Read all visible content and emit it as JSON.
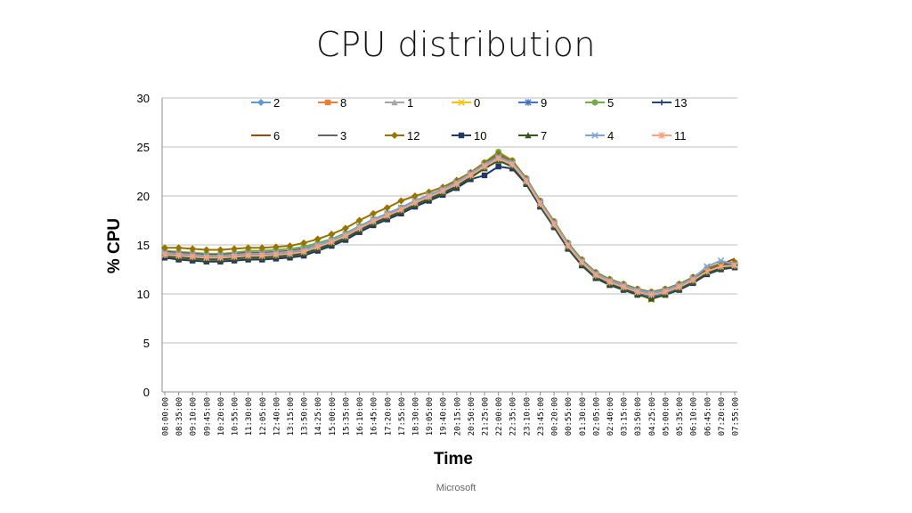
{
  "title": "CPU distribution",
  "footer": "Microsoft",
  "chart_data": {
    "type": "line",
    "xlabel": "Time",
    "ylabel": "% CPU",
    "ylim": [
      0,
      30
    ],
    "yticks": [
      0,
      5,
      10,
      15,
      20,
      25,
      30
    ],
    "grid": true,
    "legend": "top",
    "categories": [
      "08:00:00",
      "08:35:00",
      "09:10:00",
      "09:45:00",
      "10:20:00",
      "10:55:00",
      "11:30:00",
      "12:05:00",
      "12:40:00",
      "13:15:00",
      "13:50:00",
      "14:25:00",
      "15:00:00",
      "15:35:00",
      "16:10:00",
      "16:45:00",
      "17:20:00",
      "17:55:00",
      "18:30:00",
      "19:05:00",
      "19:40:00",
      "20:15:00",
      "20:50:00",
      "21:25:00",
      "22:00:00",
      "22:35:00",
      "23:10:00",
      "23:45:00",
      "00:20:00",
      "00:55:00",
      "01:30:00",
      "02:05:00",
      "02:40:00",
      "03:15:00",
      "03:50:00",
      "04:25:00",
      "05:00:00",
      "05:35:00",
      "06:10:00",
      "06:45:00",
      "07:20:00",
      "07:55:00"
    ],
    "series": [
      {
        "name": "2",
        "color": "#5b9bd5",
        "marker": "diamond",
        "values": [
          14.2,
          14.0,
          13.9,
          13.8,
          13.8,
          13.9,
          14.0,
          13.9,
          14.0,
          14.1,
          14.3,
          14.8,
          15.3,
          15.9,
          16.7,
          17.4,
          18.0,
          18.6,
          19.3,
          19.9,
          20.5,
          21.2,
          22.1,
          23.2,
          24.0,
          23.4,
          21.6,
          19.3,
          17.2,
          15.0,
          13.3,
          12.0,
          11.3,
          10.8,
          10.3,
          10.0,
          10.3,
          10.8,
          11.5,
          12.4,
          12.9,
          13.0
        ]
      },
      {
        "name": "8",
        "color": "#ed7d31",
        "marker": "square",
        "values": [
          14.0,
          13.8,
          13.7,
          13.6,
          13.6,
          13.7,
          13.8,
          13.8,
          13.9,
          14.0,
          14.2,
          14.7,
          15.2,
          15.8,
          16.6,
          17.3,
          17.9,
          18.5,
          19.2,
          19.8,
          20.4,
          21.1,
          22.0,
          23.3,
          23.8,
          23.2,
          21.5,
          19.2,
          17.1,
          14.9,
          13.2,
          11.9,
          11.2,
          10.7,
          10.2,
          9.9,
          10.2,
          10.7,
          11.4,
          12.3,
          12.8,
          13.1
        ]
      },
      {
        "name": "1",
        "color": "#a5a5a5",
        "marker": "triangle",
        "values": [
          14.1,
          13.9,
          13.8,
          13.7,
          13.7,
          13.8,
          13.9,
          13.9,
          14.0,
          14.1,
          14.3,
          14.8,
          15.3,
          15.9,
          16.7,
          17.4,
          18.0,
          18.6,
          19.3,
          19.9,
          20.5,
          21.2,
          22.1,
          23.0,
          23.9,
          23.3,
          21.6,
          19.3,
          17.2,
          15.0,
          13.3,
          12.0,
          11.3,
          10.8,
          10.3,
          10.0,
          10.3,
          10.8,
          11.5,
          12.4,
          12.9,
          13.0
        ]
      },
      {
        "name": "0",
        "color": "#ffc000",
        "marker": "x",
        "values": [
          13.8,
          13.6,
          13.5,
          13.4,
          13.4,
          13.5,
          13.6,
          13.6,
          13.7,
          13.8,
          14.0,
          14.5,
          15.0,
          15.6,
          16.4,
          17.1,
          17.7,
          18.3,
          19.0,
          19.6,
          20.2,
          20.9,
          21.8,
          22.8,
          23.6,
          23.0,
          21.3,
          19.0,
          16.9,
          14.7,
          13.0,
          11.7,
          11.0,
          10.5,
          10.0,
          9.4,
          10.0,
          10.5,
          11.2,
          12.1,
          12.6,
          12.8
        ]
      },
      {
        "name": "9",
        "color": "#4472c4",
        "marker": "star",
        "values": [
          14.0,
          13.8,
          13.7,
          13.6,
          13.6,
          13.7,
          13.8,
          13.8,
          13.9,
          14.0,
          14.2,
          14.7,
          15.2,
          15.8,
          16.6,
          17.3,
          17.9,
          18.5,
          19.2,
          19.8,
          20.4,
          21.1,
          22.0,
          22.9,
          23.7,
          23.1,
          21.4,
          19.1,
          17.0,
          14.8,
          13.1,
          11.8,
          11.1,
          10.6,
          10.1,
          9.8,
          10.1,
          10.6,
          11.3,
          12.2,
          12.7,
          12.9
        ]
      },
      {
        "name": "5",
        "color": "#70ad47",
        "marker": "circle",
        "values": [
          14.4,
          14.3,
          14.2,
          14.1,
          14.1,
          14.2,
          14.4,
          14.4,
          14.5,
          14.6,
          14.8,
          15.2,
          15.6,
          16.2,
          16.9,
          17.6,
          18.2,
          18.8,
          19.5,
          20.1,
          20.7,
          21.4,
          22.3,
          23.4,
          24.5,
          23.6,
          21.8,
          19.5,
          17.4,
          15.2,
          13.5,
          12.2,
          11.5,
          11.0,
          10.5,
          10.2,
          10.5,
          11.0,
          11.7,
          12.6,
          13.1,
          13.2
        ]
      },
      {
        "name": "13",
        "color": "#264478",
        "marker": "plus",
        "values": [
          14.0,
          13.9,
          13.8,
          13.7,
          13.7,
          13.8,
          13.9,
          13.9,
          14.0,
          14.1,
          14.3,
          14.8,
          15.3,
          15.9,
          16.7,
          17.4,
          18.0,
          18.6,
          19.3,
          19.9,
          20.5,
          21.2,
          22.1,
          23.0,
          23.8,
          23.5,
          21.8,
          19.4,
          17.3,
          15.1,
          13.4,
          12.1,
          11.4,
          10.9,
          10.4,
          10.1,
          10.4,
          10.9,
          11.6,
          12.5,
          13.0,
          13.1
        ]
      },
      {
        "name": "6",
        "color": "#9e480e",
        "marker": "none",
        "values": [
          14.3,
          14.2,
          14.1,
          14.0,
          14.0,
          14.1,
          14.2,
          14.2,
          14.3,
          14.4,
          14.6,
          15.0,
          15.5,
          16.1,
          16.9,
          17.6,
          18.2,
          18.8,
          19.5,
          20.1,
          20.7,
          21.4,
          22.3,
          23.2,
          24.1,
          23.5,
          21.7,
          19.4,
          17.3,
          15.1,
          13.4,
          12.1,
          11.4,
          10.9,
          10.4,
          10.1,
          10.4,
          10.9,
          11.6,
          12.5,
          13.0,
          13.6
        ]
      },
      {
        "name": "3",
        "color": "#636363",
        "marker": "none",
        "values": [
          14.1,
          14.0,
          13.9,
          13.8,
          13.8,
          13.9,
          14.0,
          14.0,
          14.1,
          14.2,
          14.4,
          14.9,
          15.4,
          16.0,
          16.8,
          17.5,
          18.1,
          18.7,
          19.4,
          20.0,
          20.6,
          21.3,
          22.2,
          23.1,
          23.9,
          23.3,
          21.6,
          19.3,
          17.2,
          15.0,
          13.3,
          12.0,
          11.3,
          10.8,
          10.3,
          10.0,
          10.3,
          10.8,
          11.5,
          12.4,
          12.9,
          13.0
        ]
      },
      {
        "name": "12",
        "color": "#997300",
        "marker": "diamond",
        "values": [
          14.7,
          14.7,
          14.6,
          14.5,
          14.5,
          14.6,
          14.7,
          14.7,
          14.8,
          14.9,
          15.2,
          15.6,
          16.1,
          16.7,
          17.5,
          18.2,
          18.8,
          19.5,
          20.0,
          20.4,
          20.9,
          21.6,
          22.4,
          23.4,
          24.3,
          23.6,
          21.8,
          19.5,
          17.4,
          15.2,
          13.5,
          12.2,
          11.5,
          11.0,
          10.5,
          10.2,
          10.5,
          11.0,
          11.7,
          12.6,
          13.1,
          13.2
        ]
      },
      {
        "name": "10",
        "color": "#203864",
        "marker": "square",
        "values": [
          13.7,
          13.5,
          13.4,
          13.3,
          13.3,
          13.4,
          13.5,
          13.5,
          13.6,
          13.7,
          13.9,
          14.4,
          14.9,
          15.5,
          16.3,
          17.0,
          17.6,
          18.2,
          18.9,
          19.5,
          20.1,
          20.8,
          21.7,
          22.1,
          23.0,
          22.8,
          21.2,
          18.9,
          16.8,
          14.6,
          12.9,
          11.6,
          10.9,
          10.4,
          9.9,
          9.6,
          9.9,
          10.4,
          11.1,
          12.0,
          12.5,
          12.7
        ]
      },
      {
        "name": "7",
        "color": "#375623",
        "marker": "triangle",
        "values": [
          13.9,
          13.7,
          13.6,
          13.5,
          13.5,
          13.6,
          13.7,
          13.7,
          13.8,
          13.9,
          14.1,
          14.6,
          15.1,
          15.7,
          16.5,
          17.2,
          17.8,
          18.4,
          19.1,
          19.7,
          20.3,
          21.0,
          21.9,
          22.8,
          23.6,
          23.0,
          21.3,
          19.0,
          16.9,
          14.7,
          13.0,
          11.7,
          11.0,
          10.5,
          10.0,
          9.5,
          9.9,
          10.5,
          11.2,
          12.1,
          12.6,
          12.8
        ]
      },
      {
        "name": "4",
        "color": "#7fa6d4",
        "marker": "x",
        "values": [
          14.2,
          14.1,
          14.0,
          13.9,
          13.9,
          14.0,
          14.1,
          14.1,
          14.2,
          14.3,
          14.5,
          15.0,
          15.5,
          16.1,
          16.9,
          17.6,
          18.2,
          18.8,
          19.5,
          20.1,
          20.7,
          21.4,
          22.3,
          23.2,
          24.0,
          23.4,
          21.7,
          19.4,
          17.3,
          15.1,
          13.4,
          12.1,
          11.4,
          10.9,
          10.4,
          10.1,
          10.4,
          10.9,
          11.6,
          12.8,
          13.4,
          13.0
        ]
      },
      {
        "name": "11",
        "color": "#f4a582",
        "marker": "star",
        "values": [
          14.0,
          13.9,
          13.8,
          13.7,
          13.7,
          13.8,
          13.9,
          13.9,
          14.0,
          14.1,
          14.3,
          14.8,
          15.3,
          15.9,
          16.7,
          17.4,
          18.0,
          18.6,
          19.3,
          19.9,
          20.5,
          21.2,
          22.1,
          23.0,
          23.8,
          23.2,
          21.5,
          19.2,
          17.1,
          14.9,
          13.2,
          11.9,
          11.2,
          10.7,
          10.2,
          9.9,
          10.2,
          10.7,
          11.4,
          12.3,
          12.8,
          12.9
        ]
      }
    ]
  }
}
